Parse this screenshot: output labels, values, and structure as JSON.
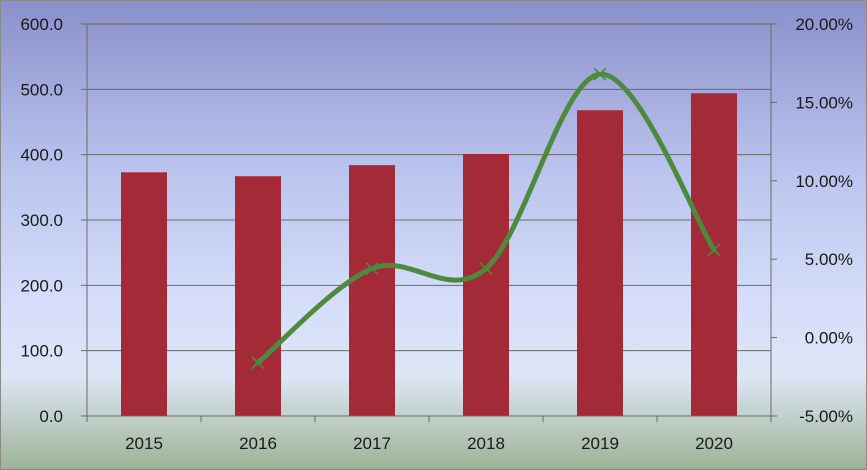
{
  "chart_data": {
    "type": "bar",
    "categories": [
      "2015",
      "2016",
      "2017",
      "2018",
      "2019",
      "2020"
    ],
    "series": [
      {
        "type": "bar",
        "axis": "left",
        "values": [
          373,
          367,
          384,
          401,
          468,
          494
        ],
        "color": "#a52a37"
      },
      {
        "type": "line",
        "axis": "right",
        "smooth": true,
        "marker": "x",
        "values": [
          null,
          -1.6,
          4.4,
          4.4,
          16.8,
          5.6
        ],
        "color": "#4e8a3d"
      }
    ],
    "y_left": {
      "min": 0,
      "max": 600,
      "step": 100,
      "tick_labels": [
        "0.0",
        "100.0",
        "200.0",
        "300.0",
        "400.0",
        "500.0",
        "600.0"
      ]
    },
    "y_right": {
      "min": -5,
      "max": 20,
      "step": 5,
      "tick_labels": [
        "-5.00%",
        "0.00%",
        "5.00%",
        "10.00%",
        "15.00%",
        "20.00%"
      ]
    },
    "title": "",
    "grid": true,
    "legend": "none"
  }
}
